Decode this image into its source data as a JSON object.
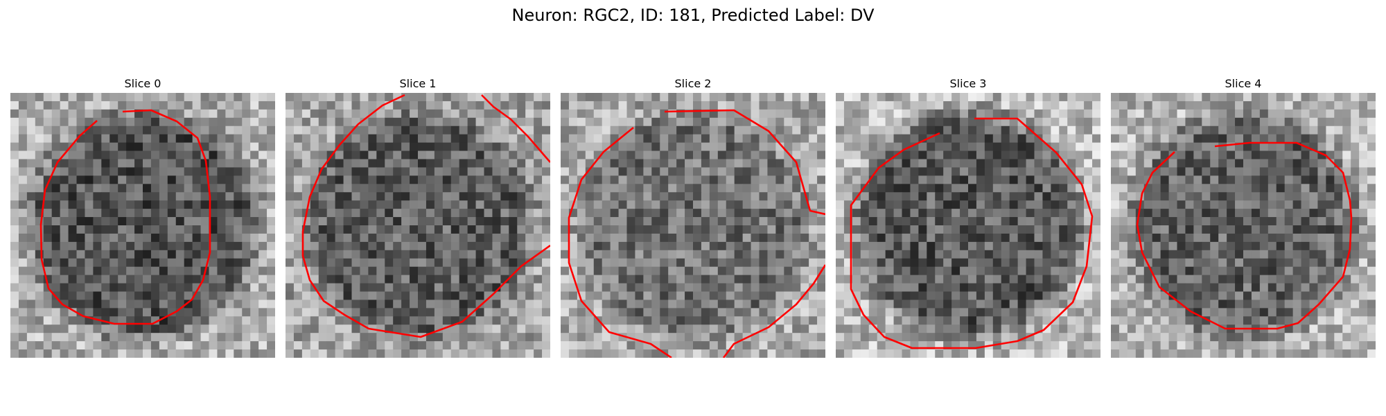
{
  "figure": {
    "title": "Neuron: RGC2, ID: 181, Predicted Label: DV"
  },
  "panels": [
    {
      "title": "Slice 0",
      "seed": 11,
      "inner_tone": 85,
      "outer_tone": 175
    },
    {
      "title": "Slice 1",
      "seed": 23,
      "inner_tone": 95,
      "outer_tone": 165
    },
    {
      "title": "Slice 2",
      "seed": 37,
      "inner_tone": 115,
      "outer_tone": 170
    },
    {
      "title": "Slice 3",
      "seed": 41,
      "inner_tone": 90,
      "outer_tone": 185
    },
    {
      "title": "Slice 4",
      "seed": 53,
      "inner_tone": 100,
      "outer_tone": 180
    }
  ],
  "colors": {
    "contour": "#ff0000"
  }
}
